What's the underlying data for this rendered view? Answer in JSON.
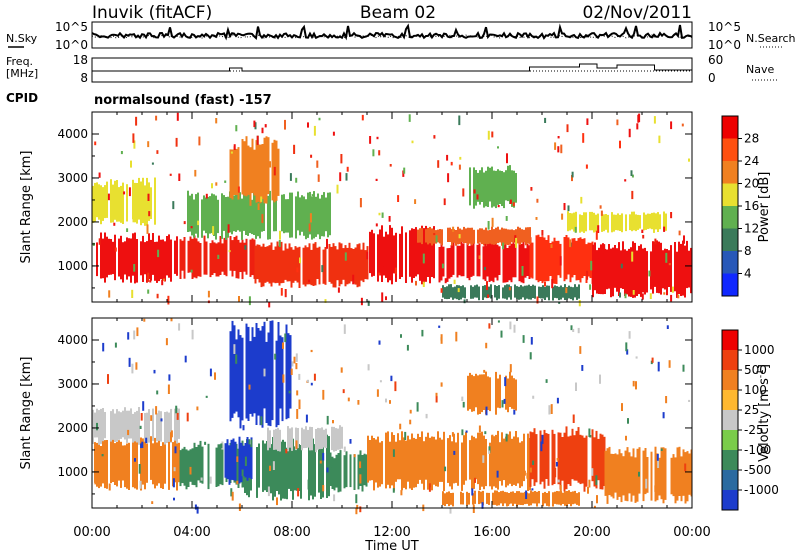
{
  "header": {
    "station": "Inuvik (fitACF)",
    "beam": "Beam 02",
    "date": "02/Nov/2011"
  },
  "strips": {
    "nsky_label": "N.Sky",
    "nsearch_label": "N.Search",
    "freq_label_1": "Freq.",
    "freq_label_2": "[MHz]",
    "nave_label": "Nave",
    "cpid_label": "CPID",
    "noise_left_ticks": [
      "10^5",
      "10^0"
    ],
    "noise_right_ticks": [
      "10^5",
      "10^0"
    ],
    "freq_left_ticks": [
      "18",
      "8"
    ],
    "freq_right_ticks": [
      "60",
      "0"
    ],
    "cpid_text": "normalsound (fast) -157"
  },
  "chart_data": [
    {
      "type": "heatmap",
      "name": "power",
      "ylabel": "Slant Range [km]",
      "xlabel": "",
      "y_ticks": [
        "1000",
        "2000",
        "3000",
        "4000"
      ],
      "ylim": [
        180,
        4500
      ],
      "colorbar": {
        "label": "Power [dB]",
        "ticks": [
          "4",
          "8",
          "12",
          "16",
          "20",
          "24",
          "28"
        ],
        "colors": [
          "#1028ff",
          "#2858b8",
          "#3a7a5a",
          "#60b050",
          "#e8e030",
          "#f08020",
          "#ff5010",
          "#ee0000"
        ],
        "range": [
          0,
          30
        ]
      },
      "bands": [
        {
          "t0": 0.0,
          "t1": 3.5,
          "r0": 700,
          "r1": 1650,
          "color": "#ee1010"
        },
        {
          "t0": 3.5,
          "t1": 6.5,
          "r0": 800,
          "r1": 1600,
          "color": "#ee2010"
        },
        {
          "t0": 6.5,
          "t1": 11.0,
          "r0": 600,
          "r1": 1450,
          "color": "#f03010"
        },
        {
          "t0": 11.0,
          "t1": 13.7,
          "r0": 700,
          "r1": 1800,
          "color": "#ee1010"
        },
        {
          "t0": 13.7,
          "t1": 17.5,
          "r0": 700,
          "r1": 1500,
          "color": "#ee1010"
        },
        {
          "t0": 17.5,
          "t1": 20.0,
          "r0": 700,
          "r1": 1600,
          "color": "#ff3010"
        },
        {
          "t0": 20.0,
          "t1": 24.0,
          "r0": 400,
          "r1": 1450,
          "color": "#ee1010"
        },
        {
          "t0": 13.0,
          "t1": 17.5,
          "r0": 1500,
          "r1": 1850,
          "color": "#f06020"
        },
        {
          "t0": 3.8,
          "t1": 9.5,
          "r0": 1700,
          "r1": 2600,
          "color": "#60b050"
        },
        {
          "t0": 5.5,
          "t1": 7.5,
          "r0": 2500,
          "r1": 3800,
          "color": "#f08020"
        },
        {
          "t0": 0.0,
          "t1": 2.5,
          "r0": 2000,
          "r1": 2900,
          "color": "#e8e030"
        },
        {
          "t0": 15.0,
          "t1": 17.0,
          "r0": 2400,
          "r1": 3200,
          "color": "#60b050"
        },
        {
          "t0": 19.0,
          "t1": 23.0,
          "r0": 1800,
          "r1": 2200,
          "color": "#e8e030"
        },
        {
          "t0": 14.0,
          "t1": 19.5,
          "r0": 250,
          "r1": 550,
          "color": "#3a7a5a"
        }
      ]
    },
    {
      "type": "heatmap",
      "name": "velocity",
      "ylabel": "Slant Range [km]",
      "xlabel": "Time UT",
      "y_ticks": [
        "1000",
        "2000",
        "3000",
        "4000"
      ],
      "ylim": [
        180,
        4500
      ],
      "x_ticks": [
        "00:00",
        "04:00",
        "08:00",
        "12:00",
        "16:00",
        "20:00",
        "00:00"
      ],
      "colorbar": {
        "label": "Velocity [m s^-1]",
        "ticks": [
          "1000",
          "500",
          "100",
          "25",
          "-25",
          "-100",
          "-500",
          "-1000"
        ],
        "colors": [
          "#1c3ccc",
          "#2a6aa0",
          "#3c8a5a",
          "#7acc4a",
          "#c8c8c8",
          "#ffb830",
          "#f08020",
          "#ee4010",
          "#ee0000"
        ]
      },
      "bands": [
        {
          "t0": 0.0,
          "t1": 3.5,
          "r0": 700,
          "r1": 1700,
          "color": "#f08020"
        },
        {
          "t0": 3.5,
          "t1": 6.0,
          "r0": 700,
          "r1": 1600,
          "color": "#3c8a5a"
        },
        {
          "t0": 6.0,
          "t1": 9.5,
          "r0": 500,
          "r1": 1700,
          "color": "#3c8a5a"
        },
        {
          "t0": 5.3,
          "t1": 6.5,
          "r0": 800,
          "r1": 1700,
          "color": "#1c3ccc"
        },
        {
          "t0": 9.5,
          "t1": 11.0,
          "r0": 600,
          "r1": 1400,
          "color": "#3c8a5a"
        },
        {
          "t0": 11.0,
          "t1": 17.5,
          "r0": 700,
          "r1": 1800,
          "color": "#f08020"
        },
        {
          "t0": 17.5,
          "t1": 20.5,
          "r0": 700,
          "r1": 1900,
          "color": "#ee4010"
        },
        {
          "t0": 20.5,
          "t1": 24.0,
          "r0": 400,
          "r1": 1450,
          "color": "#f08020"
        },
        {
          "t0": 5.5,
          "t1": 8.0,
          "r0": 2200,
          "r1": 4200,
          "color": "#1c3ccc"
        },
        {
          "t0": 0.0,
          "t1": 3.5,
          "r0": 1700,
          "r1": 2400,
          "color": "#c8c8c8"
        },
        {
          "t0": 7.0,
          "t1": 10.0,
          "r0": 1500,
          "r1": 2000,
          "color": "#c8c8c8"
        },
        {
          "t0": 15.0,
          "t1": 17.0,
          "r0": 2400,
          "r1": 3200,
          "color": "#f08020"
        },
        {
          "t0": 14.0,
          "t1": 19.5,
          "r0": 250,
          "r1": 550,
          "color": "#f08020"
        }
      ]
    }
  ]
}
